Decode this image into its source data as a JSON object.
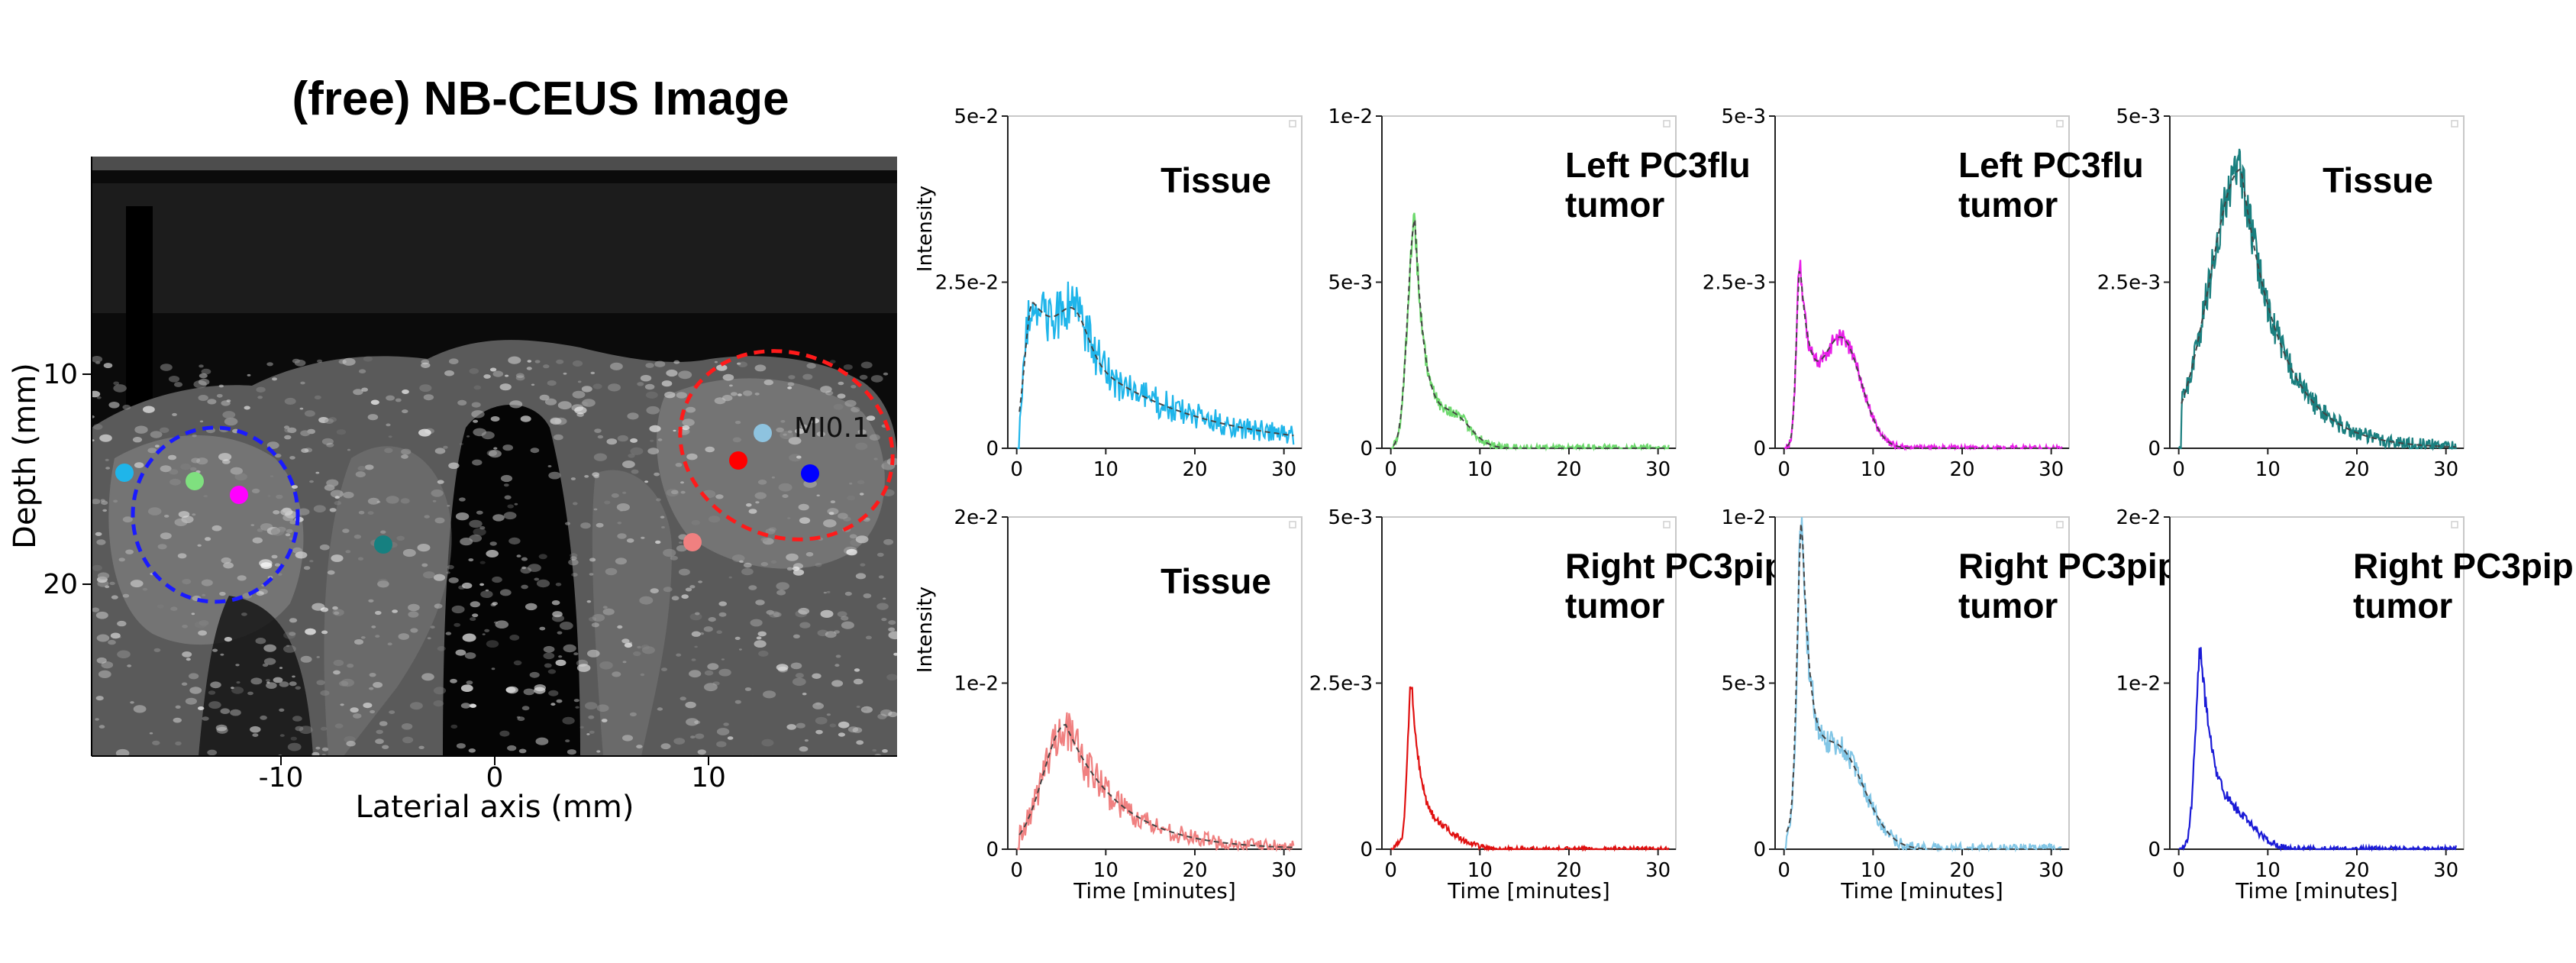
{
  "figure": {
    "title": "(free) NB-CEUS Image",
    "image_panel": {
      "x_label": "Laterial axis (mm)",
      "y_label": "Depth (mm)",
      "x_ticks": [
        -10,
        0,
        10
      ],
      "y_ticks": [
        10,
        20
      ],
      "overlay_text": [
        "MI0.1"
      ],
      "roi_circles": [
        {
          "color": "#1a1aff",
          "style": "dashed"
        },
        {
          "color": "#ff1a1a",
          "style": "dashed"
        }
      ],
      "roi_points": [
        {
          "name": "sky-blue",
          "color": "#1fb5ea"
        },
        {
          "name": "light-green",
          "color": "#7fe07f"
        },
        {
          "name": "magenta",
          "color": "#ff00ff"
        },
        {
          "name": "teal",
          "color": "#168080"
        },
        {
          "name": "light-steel-blue",
          "color": "#8ec3df"
        },
        {
          "name": "red",
          "color": "#ff0000"
        },
        {
          "name": "blue",
          "color": "#0000ff"
        },
        {
          "name": "salmon",
          "color": "#f08080"
        }
      ]
    }
  },
  "chart_data": [
    {
      "type": "line",
      "label_lines": [
        "Tissue"
      ],
      "color": "#1fb5ea",
      "ylabel": "Intensity",
      "xlabel": "",
      "xlim": [
        -1,
        32
      ],
      "ylim": [
        0,
        0.05
      ],
      "x_ticks": [
        0,
        10,
        20,
        30
      ],
      "y_ticks": [
        0,
        0.025,
        0.05
      ],
      "y_tick_labels": [
        "0",
        "2.5e-2",
        "5e-2"
      ],
      "curve": {
        "peak_time": 1.8,
        "peak": 0.022,
        "rise": 0.9,
        "decay": 12.0,
        "second_peak": {
          "t": 6.5,
          "amp": 0.006,
          "width": 1.5
        },
        "noise": 0.004,
        "dx": 0.12
      },
      "fit": true
    },
    {
      "type": "line",
      "label_lines": [
        "Left PC3flu",
        "tumor"
      ],
      "color": "#6dd96d",
      "ylabel": "",
      "xlabel": "",
      "xlim": [
        -1,
        32
      ],
      "ylim": [
        0,
        0.01
      ],
      "x_ticks": [
        0,
        10,
        20,
        30
      ],
      "y_ticks": [
        0,
        0.005,
        0.01
      ],
      "y_tick_labels": [
        "0",
        "5e-3",
        "1e-2"
      ],
      "curve": {
        "peak_time": 2.7,
        "peak": 0.0068,
        "rise": 0.8,
        "decay": 1.2,
        "second_peak": {
          "t": 7.0,
          "amp": 0.0009,
          "width": 2.0
        },
        "noise": 0.0004,
        "dx": 0.08
      },
      "fit": true
    },
    {
      "type": "line",
      "label_lines": [
        "Left PC3flu",
        "tumor"
      ],
      "color": "#e81ee8",
      "ylabel": "",
      "xlabel": "",
      "xlim": [
        -1,
        32
      ],
      "ylim": [
        0,
        0.005
      ],
      "x_ticks": [
        0,
        10,
        20,
        30
      ],
      "y_ticks": [
        0,
        0.0025,
        0.005
      ],
      "y_tick_labels": [
        "0",
        "2.5e-3",
        "5e-3"
      ],
      "curve": {
        "peak_time": 1.8,
        "peak": 0.0026,
        "rise": 0.4,
        "decay": 1.3,
        "second_peak": {
          "t": 6.5,
          "amp": 0.0016,
          "width": 2.2
        },
        "noise": 0.00015,
        "dx": 0.08
      },
      "fit": true
    },
    {
      "type": "line",
      "label_lines": [
        "Tissue"
      ],
      "color": "#1a7f7f",
      "ylabel": "",
      "xlabel": "",
      "xlim": [
        -1,
        32
      ],
      "ylim": [
        0,
        0.005
      ],
      "x_ticks": [
        0,
        10,
        20,
        30
      ],
      "y_ticks": [
        0,
        0.0025,
        0.005
      ],
      "y_tick_labels": [
        "0",
        "2.5e-3",
        "5e-3"
      ],
      "curve": {
        "peak_time": 7.0,
        "peak": 0.0042,
        "rise": 3.5,
        "decay": 4.5,
        "second_peak": null,
        "noise": 0.00035,
        "dx": 0.08
      },
      "fit": true
    },
    {
      "type": "line",
      "label_lines": [
        "Tissue"
      ],
      "color": "#f08080",
      "ylabel": "Intensity",
      "xlabel": "Time [minutes]",
      "xlim": [
        -1,
        32
      ],
      "ylim": [
        0,
        0.02
      ],
      "x_ticks": [
        0,
        10,
        20,
        30
      ],
      "y_ticks": [
        0,
        0.01,
        0.02
      ],
      "y_tick_labels": [
        "0",
        "1e-2",
        "2e-2"
      ],
      "curve": {
        "peak_time": 5.5,
        "peak": 0.0075,
        "rise": 2.5,
        "decay": 6.0,
        "second_peak": null,
        "noise": 0.0013,
        "dx": 0.12
      },
      "fit": true
    },
    {
      "type": "line",
      "label_lines": [
        "Right PC3pip",
        "tumor"
      ],
      "color": "#e01010",
      "ylabel": "",
      "xlabel": "Time [minutes]",
      "xlim": [
        -1,
        32
      ],
      "ylim": [
        0,
        0.005
      ],
      "x_ticks": [
        0,
        10,
        20,
        30
      ],
      "y_ticks": [
        0,
        0.0025,
        0.005
      ],
      "y_tick_labels": [
        "0",
        "2.5e-3",
        "5e-3"
      ],
      "curve": {
        "peak_time": 2.3,
        "peak": 0.0024,
        "rise": 0.4,
        "decay": 1.0,
        "second_peak": {
          "t": 5.0,
          "amp": 0.0003,
          "width": 2.5
        },
        "noise": 0.00012,
        "dx": 0.08
      },
      "fit": false
    },
    {
      "type": "line",
      "label_lines": [
        "Right PC3pip",
        "tumor"
      ],
      "color": "#82c6e6",
      "ylabel": "",
      "xlabel": "Time [minutes]",
      "xlim": [
        -1,
        32
      ],
      "ylim": [
        0,
        0.01
      ],
      "x_ticks": [
        0,
        10,
        20,
        30
      ],
      "y_ticks": [
        0,
        0.005,
        0.01
      ],
      "y_tick_labels": [
        "0",
        "5e-3",
        "1e-2"
      ],
      "curve": {
        "peak_time": 2.0,
        "peak": 0.0088,
        "rise": 0.5,
        "decay": 1.0,
        "second_peak": {
          "t": 6.0,
          "amp": 0.003,
          "width": 3.0
        },
        "noise": 0.0006,
        "dx": 0.1
      },
      "fit": true
    },
    {
      "type": "line",
      "label_lines": [
        "Right PC3pip",
        "tumor"
      ],
      "color": "#1a1ad6",
      "ylabel": "",
      "xlabel": "Time [minutes]",
      "xlim": [
        -1,
        32
      ],
      "ylim": [
        0,
        0.02
      ],
      "x_ticks": [
        0,
        10,
        20,
        30
      ],
      "y_ticks": [
        0,
        0.01,
        0.02
      ],
      "y_tick_labels": [
        "0",
        "1e-2",
        "2e-2"
      ],
      "curve": {
        "peak_time": 2.5,
        "peak": 0.0115,
        "rise": 0.6,
        "decay": 1.4,
        "second_peak": {
          "t": 6.0,
          "amp": 0.0018,
          "width": 2.5
        },
        "noise": 0.0006,
        "dx": 0.08
      },
      "fit": false
    }
  ]
}
